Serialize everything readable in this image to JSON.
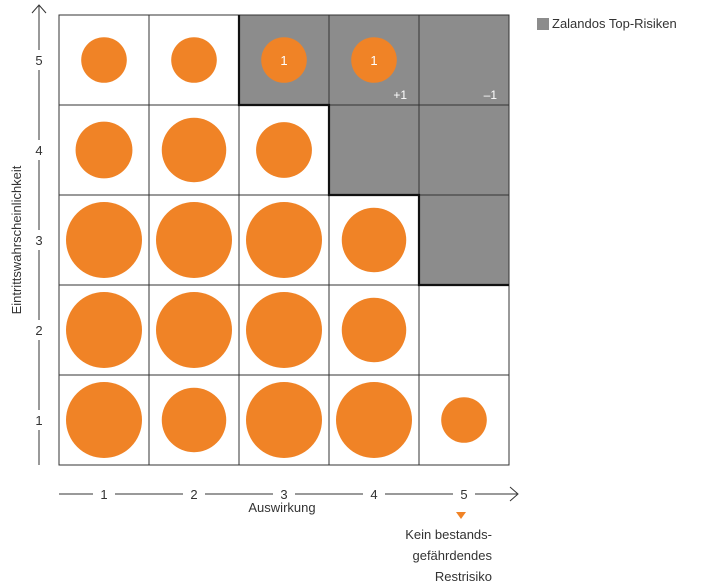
{
  "legend": {
    "label": "Zalandos Top-Risiken",
    "color": "#8c8c8c"
  },
  "note": {
    "lines": [
      "Kein bestands-",
      "gefährdendes",
      "Restrisiko"
    ],
    "marker_color": "#f08326"
  },
  "colors": {
    "bubble": "#f08326",
    "top_risk": "#8c8c8c",
    "grid": "#333333",
    "border_bold": "#111111"
  },
  "chart_data": {
    "type": "bubble-matrix",
    "xlabel": "Auswirkung",
    "ylabel": "Eintrittswahrscheinlichkeit",
    "x_ticks": [
      "1",
      "2",
      "3",
      "4",
      "5"
    ],
    "y_ticks": [
      "1",
      "2",
      "3",
      "4",
      "5"
    ],
    "relative_bubble_size_scale": "0 (none) to 5 (largest)",
    "bubbles": [
      {
        "x": 1,
        "y": 5,
        "size": 1.8
      },
      {
        "x": 2,
        "y": 5,
        "size": 1.8
      },
      {
        "x": 3,
        "y": 5,
        "size": 1.8,
        "label": "1"
      },
      {
        "x": 4,
        "y": 5,
        "size": 1.8,
        "label": "1"
      },
      {
        "x": 1,
        "y": 4,
        "size": 2.8
      },
      {
        "x": 2,
        "y": 4,
        "size": 3.6
      },
      {
        "x": 3,
        "y": 4,
        "size": 2.7
      },
      {
        "x": 1,
        "y": 3,
        "size": 5
      },
      {
        "x": 2,
        "y": 3,
        "size": 5
      },
      {
        "x": 3,
        "y": 3,
        "size": 5
      },
      {
        "x": 4,
        "y": 3,
        "size": 3.6
      },
      {
        "x": 1,
        "y": 2,
        "size": 5
      },
      {
        "x": 2,
        "y": 2,
        "size": 5
      },
      {
        "x": 3,
        "y": 2,
        "size": 5
      },
      {
        "x": 4,
        "y": 2,
        "size": 3.6
      },
      {
        "x": 1,
        "y": 1,
        "size": 5
      },
      {
        "x": 2,
        "y": 1,
        "size": 3.6
      },
      {
        "x": 3,
        "y": 1,
        "size": 5
      },
      {
        "x": 4,
        "y": 1,
        "size": 5
      },
      {
        "x": 5,
        "y": 1,
        "size": 1.8
      }
    ],
    "top_risk_cells": [
      {
        "x": 3,
        "y": 5
      },
      {
        "x": 4,
        "y": 5
      },
      {
        "x": 5,
        "y": 5
      },
      {
        "x": 4,
        "y": 4
      },
      {
        "x": 5,
        "y": 4
      },
      {
        "x": 5,
        "y": 3
      }
    ],
    "cell_annotations": [
      {
        "x": 4,
        "y": 5,
        "text": "+1"
      },
      {
        "x": 5,
        "y": 5,
        "text": "–1"
      }
    ]
  }
}
